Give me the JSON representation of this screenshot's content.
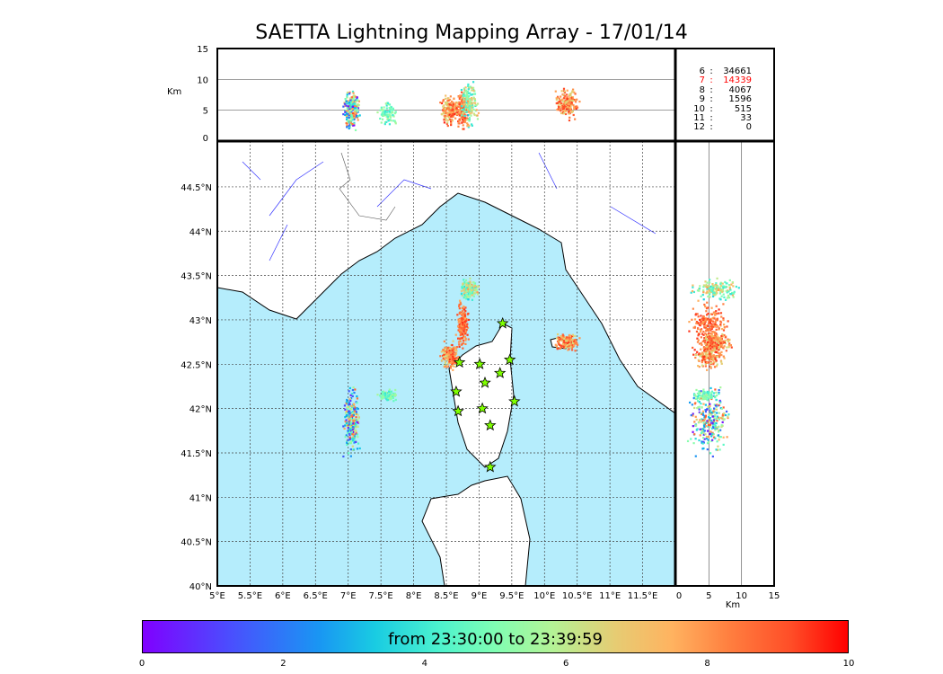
{
  "chart_data": {
    "type": "scatter",
    "title": "SAETTA Lightning Mapping Array - 17/01/14",
    "map": {
      "lon_range": [
        5,
        12
      ],
      "lat_range": [
        40,
        45
      ],
      "x_ticks": [
        "5°E",
        "5.5°E",
        "6°E",
        "6.5°E",
        "7°E",
        "7.5°E",
        "8°E",
        "8.5°E",
        "9°E",
        "9.5°E",
        "10°E",
        "10.5°E",
        "11°E",
        "11.5°E"
      ],
      "y_ticks": [
        "40°N",
        "40.5°N",
        "41°N",
        "41.5°N",
        "42°N",
        "42.5°N",
        "43°N",
        "43.5°N",
        "44°N",
        "44.5°N"
      ]
    },
    "altitude_panel": {
      "ylabel": "Km",
      "ylim": [
        0,
        15
      ],
      "y_ticks": [
        "0",
        "5",
        "10",
        "15"
      ]
    },
    "side_panel": {
      "xlabel": "Km",
      "xlim": [
        0,
        15
      ],
      "x_ticks": [
        "0",
        "5",
        "10",
        "15"
      ]
    },
    "stations": [
      [
        9.36,
        42.96
      ],
      [
        8.7,
        42.52
      ],
      [
        9.01,
        42.5
      ],
      [
        9.47,
        42.55
      ],
      [
        9.32,
        42.4
      ],
      [
        9.09,
        42.29
      ],
      [
        8.65,
        42.19
      ],
      [
        9.54,
        42.08
      ],
      [
        8.68,
        41.97
      ],
      [
        9.05,
        42.0
      ],
      [
        9.17,
        41.81
      ],
      [
        9.17,
        41.34
      ]
    ],
    "clusters": [
      {
        "lon": 7.05,
        "lat": 41.85,
        "dlon": 0.1,
        "dlat": 0.3,
        "alt": 5,
        "dalt": 2.5,
        "t": [
          0,
          9
        ],
        "n": 260
      },
      {
        "lon": 7.6,
        "lat": 42.15,
        "dlon": 0.15,
        "dlat": 0.05,
        "alt": 4.5,
        "dalt": 1.5,
        "t": [
          3.5,
          6
        ],
        "n": 80
      },
      {
        "lon": 8.55,
        "lat": 42.6,
        "dlon": 0.12,
        "dlat": 0.12,
        "alt": 5,
        "dalt": 2,
        "t": [
          6.5,
          9.5
        ],
        "n": 180
      },
      {
        "lon": 8.75,
        "lat": 42.95,
        "dlon": 0.08,
        "dlat": 0.2,
        "alt": 5,
        "dalt": 2.5,
        "t": [
          7.5,
          9.5
        ],
        "n": 200
      },
      {
        "lon": 8.85,
        "lat": 43.35,
        "dlon": 0.12,
        "dlat": 0.1,
        "alt": 6,
        "dalt": 3,
        "t": [
          3,
          8
        ],
        "n": 160
      },
      {
        "lon": 10.35,
        "lat": 42.75,
        "dlon": 0.15,
        "dlat": 0.08,
        "alt": 6,
        "dalt": 2,
        "t": [
          6.5,
          9.5
        ],
        "n": 180
      }
    ],
    "stats": [
      {
        "k": "6",
        "v": "34661"
      },
      {
        "k": "7",
        "v": "14339",
        "highlight": "#ff0000"
      },
      {
        "k": "8",
        "v": "4067"
      },
      {
        "k": "9",
        "v": "1596"
      },
      {
        "k": "10",
        "v": "515"
      },
      {
        "k": "11",
        "v": "33"
      },
      {
        "k": "12",
        "v": "0"
      }
    ],
    "colorbar": {
      "label": "from 23:30:00 to 23:39:59",
      "ticks": [
        "0",
        "2",
        "4",
        "6",
        "8",
        "10"
      ],
      "range": [
        0,
        10
      ],
      "colormap": "rainbow"
    }
  },
  "colors": {
    "sea": "#b5edfc",
    "land": "#ffffff"
  }
}
